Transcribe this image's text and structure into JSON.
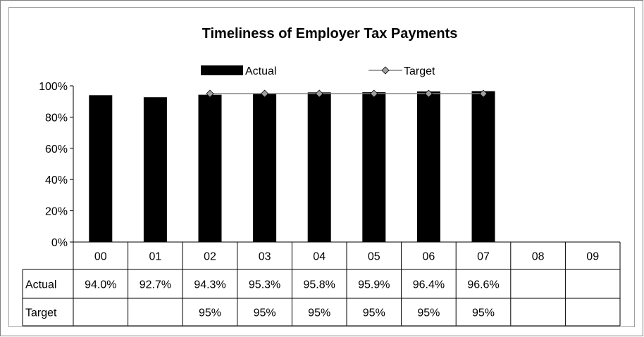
{
  "chart_data": {
    "type": "bar",
    "title": "Timeliness of Employer Tax Payments",
    "categories": [
      "00",
      "01",
      "02",
      "03",
      "04",
      "05",
      "06",
      "07",
      "08",
      "09"
    ],
    "ylim": [
      0,
      1
    ],
    "yticks": [
      "0%",
      "20%",
      "40%",
      "60%",
      "80%",
      "100%"
    ],
    "series": [
      {
        "name": "Actual",
        "type": "bar",
        "color": "#000000",
        "values": [
          0.94,
          0.927,
          0.943,
          0.953,
          0.958,
          0.959,
          0.964,
          0.966,
          null,
          null
        ],
        "labels": [
          "94.0%",
          "92.7%",
          "94.3%",
          "95.3%",
          "95.8%",
          "95.9%",
          "96.4%",
          "96.6%",
          "",
          ""
        ]
      },
      {
        "name": "Target",
        "type": "line",
        "color": "#808080",
        "marker_color": "#a0a0a0",
        "values": [
          null,
          null,
          0.95,
          0.95,
          0.95,
          0.95,
          0.95,
          0.95,
          null,
          null
        ],
        "labels": [
          "",
          "",
          "95%",
          "95%",
          "95%",
          "95%",
          "95%",
          "95%",
          "",
          ""
        ]
      }
    ],
    "legend": "top-center",
    "grid": false,
    "data_table": true
  }
}
